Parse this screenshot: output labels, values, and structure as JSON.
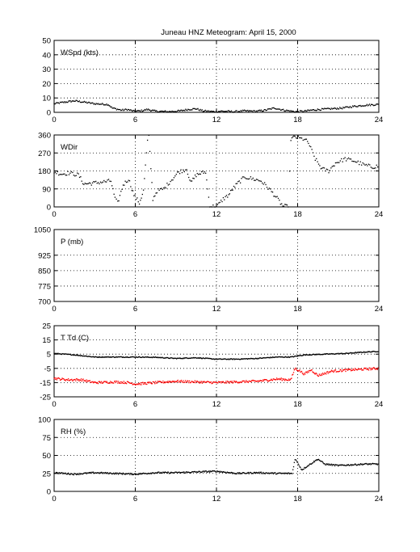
{
  "title": "Juneau HNZ Meteogram:      April 15, 2000",
  "colors": {
    "black": "#000000",
    "red": "#ff0000",
    "grid": "#000000"
  },
  "chart_data": [
    {
      "type": "scatter",
      "label": "WSpd (kts)",
      "xlim": [
        0,
        24
      ],
      "xticks": [
        "0",
        "6",
        "12",
        "18",
        "24"
      ],
      "ylim": [
        0,
        50
      ],
      "yticks": [
        "0",
        "10",
        "20",
        "30",
        "40",
        "50"
      ],
      "grid": true,
      "series": [
        {
          "color": "#000000",
          "noise": 0.6,
          "density": 4,
          "points": [
            [
              0,
              6
            ],
            [
              0.7,
              7
            ],
            [
              1.5,
              8
            ],
            [
              2.3,
              7
            ],
            [
              3,
              6
            ],
            [
              4,
              5.5
            ],
            [
              4.3,
              3
            ],
            [
              5,
              1.5
            ],
            [
              5.4,
              2
            ],
            [
              5.9,
              0.8
            ],
            [
              6.4,
              1
            ],
            [
              6.9,
              2
            ],
            [
              7.5,
              0.8
            ],
            [
              8.4,
              0.5
            ],
            [
              9.3,
              1
            ],
            [
              9.9,
              2
            ],
            [
              10.5,
              2.5
            ],
            [
              11,
              1
            ],
            [
              11.8,
              0.5
            ],
            [
              12.4,
              0.8
            ],
            [
              13.3,
              0.5
            ],
            [
              14,
              1
            ],
            [
              15,
              0.8
            ],
            [
              15.6,
              1.5
            ],
            [
              16.3,
              3
            ],
            [
              17,
              1.5
            ],
            [
              17.8,
              0.5
            ],
            [
              18.5,
              0.8
            ],
            [
              19,
              1.5
            ],
            [
              19.6,
              2
            ],
            [
              20.5,
              2.5
            ],
            [
              21.3,
              3
            ],
            [
              22,
              4
            ],
            [
              23,
              5
            ],
            [
              24,
              5.5
            ]
          ]
        }
      ]
    },
    {
      "type": "scatter",
      "label": "WDir",
      "xlim": [
        0,
        24
      ],
      "xticks": [
        "0",
        "6",
        "12",
        "18",
        "24"
      ],
      "ylim": [
        0,
        360
      ],
      "yticks": [
        "0",
        "90",
        "180",
        "270",
        "360"
      ],
      "grid": true,
      "series": [
        {
          "color": "#000000",
          "noise": 10,
          "density": 3,
          "points": [
            [
              0,
              175
            ],
            [
              0.6,
              165
            ],
            [
              1.1,
              170
            ],
            [
              1.8,
              160
            ],
            [
              2.2,
              115
            ],
            [
              3,
              120
            ],
            [
              3.6,
              125
            ],
            [
              4.2,
              130
            ],
            [
              4.5,
              40
            ],
            [
              4.7,
              20
            ],
            [
              5.1,
              110
            ],
            [
              5.5,
              140
            ],
            [
              5.9,
              60
            ],
            [
              6.3,
              20
            ],
            [
              6.6,
              80
            ],
            [
              6.9,
              330
            ],
            [
              7,
              350
            ],
            [
              7.3,
              40
            ],
            [
              7.6,
              80
            ],
            [
              8.1,
              90
            ],
            [
              8.6,
              130
            ],
            [
              9.2,
              175
            ],
            [
              9.8,
              190
            ],
            [
              10.1,
              120
            ],
            [
              10.5,
              160
            ],
            [
              10.9,
              170
            ],
            [
              11.2,
              175
            ],
            [
              11.5,
              5
            ],
            [
              12,
              0
            ],
            [
              12.5,
              40
            ],
            [
              12.9,
              60
            ],
            [
              13.2,
              90
            ],
            [
              13.6,
              120
            ],
            [
              14.1,
              150
            ],
            [
              14.7,
              140
            ],
            [
              15.3,
              130
            ],
            [
              15.9,
              90
            ],
            [
              16.4,
              50
            ],
            [
              16.9,
              5
            ],
            [
              17.3,
              0
            ],
            [
              17.5,
              340
            ],
            [
              17.8,
              350
            ],
            [
              18.3,
              340
            ],
            [
              18.5,
              340
            ],
            [
              18.8,
              320
            ],
            [
              19.3,
              240
            ],
            [
              19.8,
              190
            ],
            [
              20.3,
              180
            ],
            [
              20.8,
              220
            ],
            [
              21.5,
              240
            ],
            [
              22.2,
              230
            ],
            [
              22.9,
              210
            ],
            [
              23.5,
              200
            ],
            [
              24,
              205
            ]
          ]
        }
      ]
    },
    {
      "type": "scatter",
      "label": "P (mb)",
      "xlim": [
        0,
        24
      ],
      "xticks": [
        "0",
        "6",
        "12",
        "18",
        "24"
      ],
      "ylim": [
        700,
        1050
      ],
      "yticks": [
        "700",
        "775",
        "850",
        "925",
        "1050"
      ],
      "ytick_values": [
        700,
        775,
        850,
        925,
        1050
      ],
      "grid": true,
      "series": []
    },
    {
      "type": "scatter",
      "label": "T Td (C)",
      "xlim": [
        0,
        24
      ],
      "xticks": [
        "0",
        "6",
        "12",
        "18",
        "24"
      ],
      "ylim": [
        -25,
        25
      ],
      "yticks": [
        "-25",
        "-15",
        "-5",
        "5",
        "15",
        "25"
      ],
      "grid": true,
      "series": [
        {
          "name": "T",
          "color": "#000000",
          "noise": 0.3,
          "density": 5,
          "points": [
            [
              0,
              5.5
            ],
            [
              1.5,
              4.5
            ],
            [
              3,
              3
            ],
            [
              4.5,
              3
            ],
            [
              6,
              3
            ],
            [
              7.5,
              2.8
            ],
            [
              9,
              2
            ],
            [
              10.5,
              2.5
            ],
            [
              12,
              1.5
            ],
            [
              13.5,
              1.5
            ],
            [
              15,
              2
            ],
            [
              16.5,
              3
            ],
            [
              17.5,
              3
            ],
            [
              18.5,
              4.5
            ],
            [
              20,
              5
            ],
            [
              21.5,
              5.5
            ],
            [
              23,
              6.5
            ],
            [
              24,
              7
            ]
          ]
        },
        {
          "name": "Td",
          "color": "#ff0000",
          "noise": 0.8,
          "density": 5,
          "points": [
            [
              0,
              -12
            ],
            [
              1,
              -13
            ],
            [
              2,
              -13
            ],
            [
              3,
              -15
            ],
            [
              4.5,
              -14.5
            ],
            [
              5.5,
              -15
            ],
            [
              6,
              -16
            ],
            [
              7.5,
              -15
            ],
            [
              9,
              -14
            ],
            [
              10.5,
              -14.5
            ],
            [
              12,
              -15
            ],
            [
              13.5,
              -14.5
            ],
            [
              15,
              -14
            ],
            [
              16.5,
              -12.5
            ],
            [
              17.5,
              -13
            ],
            [
              17.8,
              -5
            ],
            [
              18.2,
              -7
            ],
            [
              18.5,
              -9
            ],
            [
              19,
              -6
            ],
            [
              19.5,
              -10
            ],
            [
              20.5,
              -7
            ],
            [
              22,
              -6
            ],
            [
              23,
              -5.5
            ],
            [
              24,
              -5
            ]
          ]
        }
      ]
    },
    {
      "type": "scatter",
      "label": "RH (%)",
      "xlim": [
        0,
        24
      ],
      "xticks": [
        "0",
        "6",
        "12",
        "18",
        "24"
      ],
      "ylim": [
        0,
        100
      ],
      "yticks": [
        "0",
        "25",
        "50",
        "75",
        "100"
      ],
      "grid": true,
      "series": [
        {
          "color": "#000000",
          "noise": 1,
          "density": 5,
          "points": [
            [
              0,
              26
            ],
            [
              1.5,
              24
            ],
            [
              3,
              26
            ],
            [
              4.5,
              25
            ],
            [
              6,
              24
            ],
            [
              7.5,
              26
            ],
            [
              9,
              26
            ],
            [
              10.5,
              27
            ],
            [
              12,
              28
            ],
            [
              13.5,
              25
            ],
            [
              15,
              26
            ],
            [
              16.5,
              25
            ],
            [
              17.6,
              25
            ],
            [
              17.8,
              45
            ],
            [
              18,
              40
            ],
            [
              18.3,
              30
            ],
            [
              18.7,
              35
            ],
            [
              19.5,
              45
            ],
            [
              20,
              38
            ],
            [
              21,
              36
            ],
            [
              22,
              37
            ],
            [
              23,
              38
            ],
            [
              24,
              38
            ]
          ]
        }
      ]
    }
  ]
}
